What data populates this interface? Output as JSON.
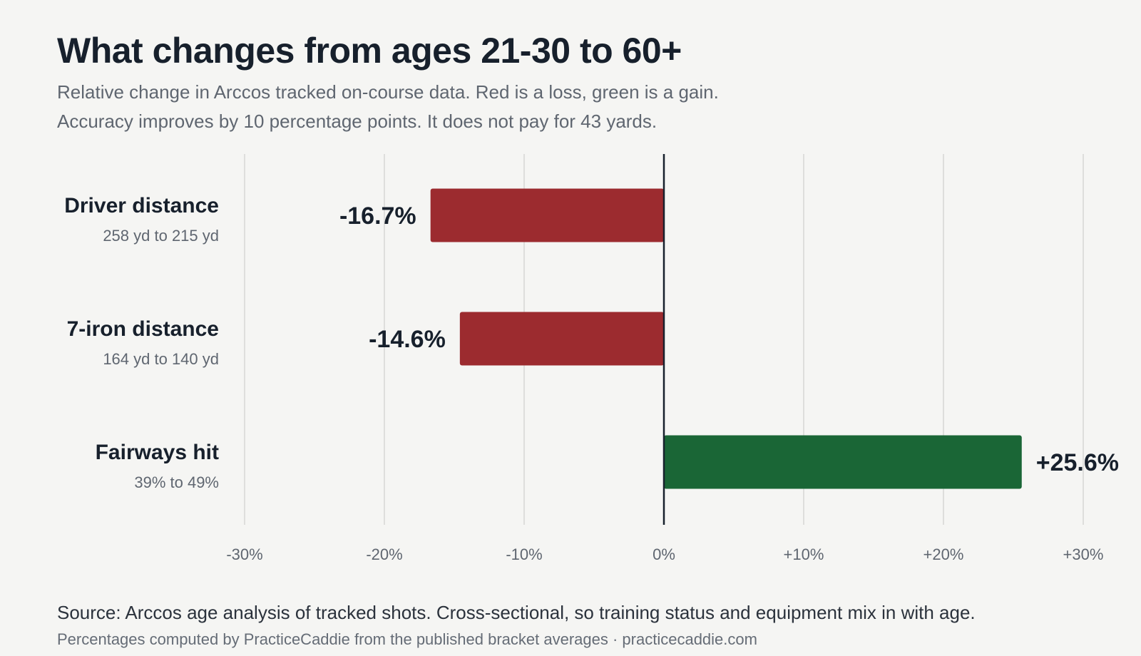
{
  "header": {
    "title": "What changes from ages 21-30 to 60+",
    "subtitle_line1": "Relative change in Arccos tracked on-course data. Red is a loss, green is a gain.",
    "subtitle_line2": "Accuracy improves by 10 percentage points. It does not pay for 43 yards."
  },
  "footer": {
    "source": "Source: Arccos age analysis of tracked shots. Cross-sectional, so training status and equipment mix in with age.",
    "note": "Percentages computed by PracticeCaddie from the published bracket averages · practicecaddie.com"
  },
  "colors": {
    "loss": "#9c2b2f",
    "gain": "#1a6636",
    "zero_line": "#17202c",
    "grid": "#d6d6d4",
    "label": "#17202c",
    "sublabel": "#5f6670",
    "tick": "#5f6670"
  },
  "chart_data": {
    "type": "bar",
    "orientation": "horizontal",
    "categories": [
      "Driver distance",
      "7-iron distance",
      "Fairways hit"
    ],
    "sublabels": [
      "258 yd to 215 yd",
      "164 yd to 140 yd",
      "39% to 49%"
    ],
    "values": [
      -16.7,
      -14.6,
      25.6
    ],
    "data_labels": [
      "-16.7%",
      "-14.6%",
      "+25.6%"
    ],
    "xlim": [
      -30,
      30
    ],
    "xticks": [
      -30,
      -20,
      -10,
      0,
      10,
      20,
      30
    ],
    "xtick_labels": [
      "-30%",
      "-20%",
      "-10%",
      "0%",
      "+10%",
      "+20%",
      "+30%"
    ],
    "grid": true,
    "xlabel": "",
    "ylabel": ""
  }
}
